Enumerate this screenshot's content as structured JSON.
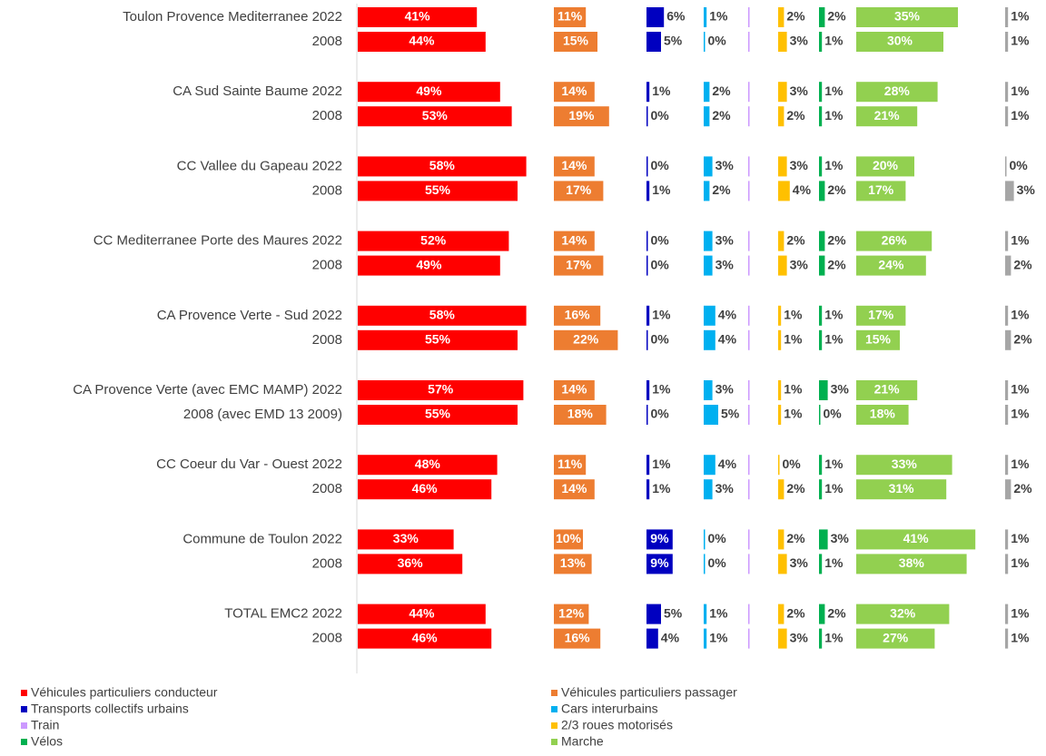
{
  "chart_data": {
    "type": "bar",
    "orientation": "horizontal",
    "categories": [
      "Toulon Provence Mediterranee  2022",
      "2008",
      "CA Sud Sainte Baume 2022",
      "2008",
      "CC Vallee du Gapeau 2022",
      "2008",
      "CC Mediterranee Porte des Maures 2022",
      "2008",
      "CA Provence Verte - Sud 2022",
      "2008",
      "CA Provence Verte (avec EMC MAMP) 2022",
      "2008 (avec EMD 13 2009)",
      "CC Coeur du Var - Ouest 2022",
      "2008",
      "Commune de Toulon 2022",
      "2008",
      "TOTAL EMC2 2022",
      "2008"
    ],
    "series": [
      {
        "name": "Véhicules particuliers conducteur",
        "color": "#ff0000",
        "values": [
          41,
          44,
          49,
          53,
          58,
          55,
          52,
          49,
          58,
          55,
          57,
          55,
          48,
          46,
          33,
          36,
          44,
          46
        ],
        "value_labels": [
          "41%",
          "44%",
          "49%",
          "53%",
          "58%",
          "55%",
          "52%",
          "49%",
          "58%",
          "55%",
          "57%",
          "55%",
          "48%",
          "46%",
          "33%",
          "36%",
          "44%",
          "46%"
        ]
      },
      {
        "name": "Véhicules particuliers passager",
        "color": "#ed7d31",
        "values": [
          11,
          15,
          14,
          19,
          14,
          17,
          14,
          17,
          16,
          22,
          14,
          18,
          11,
          14,
          10,
          13,
          12,
          16
        ],
        "value_labels": [
          "11%",
          "15%",
          "14%",
          "19%",
          "14%",
          "17%",
          "14%",
          "17%",
          "16%",
          "22%",
          "14%",
          "18%",
          "11%",
          "14%",
          "10%",
          "13%",
          "12%",
          "16%"
        ]
      },
      {
        "name": "Transports collectifs urbains",
        "color": "#0000c0",
        "values": [
          6,
          5,
          1,
          0,
          0,
          1,
          0,
          0,
          1,
          0,
          1,
          0,
          1,
          1,
          9,
          9,
          5,
          4
        ],
        "value_labels": [
          "6%",
          "5%",
          "1%",
          "0%",
          "0%",
          "1%",
          "0%",
          "0%",
          "1%",
          "0%",
          "1%",
          "0%",
          "1%",
          "1%",
          "9%",
          "9%",
          "5%",
          "4%"
        ]
      },
      {
        "name": "Cars interurbains",
        "color": "#00b0f0",
        "values": [
          1,
          0,
          2,
          2,
          3,
          2,
          3,
          3,
          4,
          4,
          3,
          5,
          4,
          3,
          0,
          0,
          1,
          1
        ],
        "value_labels": [
          "1%",
          "0%",
          "2%",
          "2%",
          "3%",
          "2%",
          "3%",
          "3%",
          "4%",
          "4%",
          "3%",
          "5%",
          "4%",
          "3%",
          "0%",
          "0%",
          "1%",
          "1%"
        ]
      },
      {
        "name": "Train",
        "color": "#cc99ff",
        "values": [
          0.1,
          0.1,
          0.1,
          0.1,
          0.1,
          0.1,
          0.1,
          0.1,
          0.1,
          0.1,
          0.1,
          0.1,
          0.1,
          0.1,
          0.1,
          0.1,
          0.1,
          0.1
        ]
      },
      {
        "name": "2/3 roues motorisés",
        "color": "#ffc000",
        "values": [
          2,
          3,
          3,
          2,
          3,
          4,
          2,
          3,
          1,
          1,
          1,
          1,
          0,
          2,
          2,
          3,
          2,
          3
        ],
        "value_labels": [
          "2%",
          "3%",
          "3%",
          "2%",
          "3%",
          "4%",
          "2%",
          "3%",
          "1%",
          "1%",
          "1%",
          "1%",
          "0%",
          "2%",
          "2%",
          "3%",
          "2%",
          "3%"
        ]
      },
      {
        "name": "Vélos",
        "color": "#00b050",
        "values": [
          2,
          1,
          1,
          1,
          1,
          2,
          2,
          2,
          1,
          1,
          3,
          0,
          1,
          1,
          3,
          1,
          2,
          1
        ],
        "value_labels": [
          "2%",
          "1%",
          "1%",
          "1%",
          "1%",
          "2%",
          "2%",
          "2%",
          "1%",
          "1%",
          "3%",
          "0%",
          "1%",
          "1%",
          "3%",
          "1%",
          "2%",
          "1%"
        ]
      },
      {
        "name": "Marche",
        "color": "#92d050",
        "values": [
          35,
          30,
          28,
          21,
          20,
          17,
          26,
          24,
          17,
          15,
          21,
          18,
          33,
          31,
          41,
          38,
          32,
          27
        ],
        "value_labels": [
          "35%",
          "30%",
          "28%",
          "21%",
          "20%",
          "17%",
          "26%",
          "24%",
          "17%",
          "15%",
          "21%",
          "18%",
          "33%",
          "31%",
          "41%",
          "38%",
          "32%",
          "27%"
        ]
      },
      {
        "color": "#a6a6a6",
        "values": [
          1,
          1,
          1,
          1,
          0,
          3,
          1,
          2,
          1,
          2,
          1,
          1,
          1,
          2,
          1,
          1,
          1,
          1
        ],
        "value_labels": [
          "1%",
          "1%",
          "1%",
          "1%",
          "0%",
          "3%",
          "1%",
          "2%",
          "1%",
          "2%",
          "1%",
          "1%",
          "1%",
          "2%",
          "1%",
          "1%",
          "1%",
          "1%"
        ]
      }
    ]
  }
}
